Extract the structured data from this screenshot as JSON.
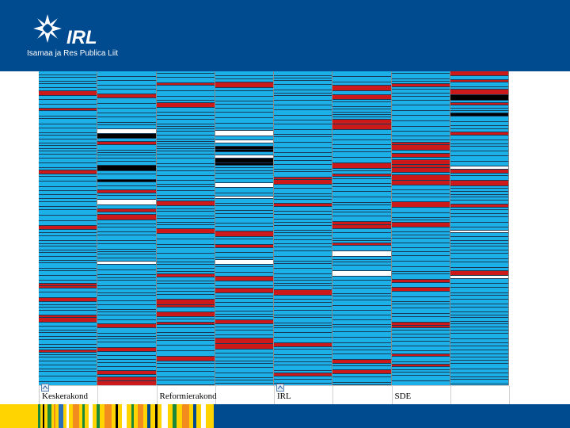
{
  "logo": {
    "name": "IRL",
    "subtitle": "Isamaa ja Res Publica Liit",
    "icon": "star-compass-icon"
  },
  "columns": [
    {
      "label": "Keskerakond",
      "has_icon": true
    },
    {
      "label": "",
      "has_icon": false
    },
    {
      "label": "Reformierakond",
      "has_icon": false
    },
    {
      "label": "",
      "has_icon": false
    },
    {
      "label": "IRL",
      "has_icon": true
    },
    {
      "label": "",
      "has_icon": false
    },
    {
      "label": "SDE",
      "has_icon": false
    },
    {
      "label": "",
      "has_icon": false
    }
  ],
  "colors": {
    "header_bg": "#004a8f",
    "cell_blue": "#1bb0e8",
    "cell_red": "#cc1a1a",
    "cell_white": "#ffffff",
    "cell_black": "#000000",
    "separator": "#1a3a5a",
    "footer_yellow": "#ffd400"
  }
}
